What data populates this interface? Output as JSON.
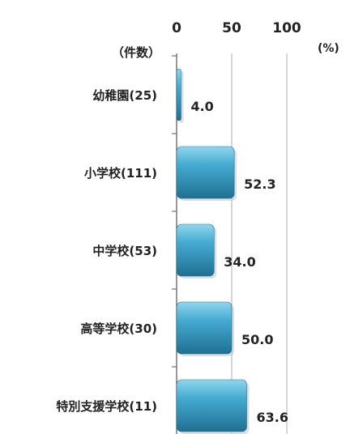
{
  "chart_data": {
    "type": "bar",
    "orientation": "horizontal",
    "categories": [
      "幼稚園(25)",
      "小学校(111)",
      "中学校(53)",
      "高等学校(30)",
      "特別支援学校(11)"
    ],
    "values": [
      4.0,
      52.3,
      34.0,
      50.0,
      63.6
    ],
    "value_labels": [
      "4.0",
      "52.3",
      "34.0",
      "50.0",
      "63.6"
    ],
    "x_ticks": [
      "0",
      "50",
      "100"
    ],
    "x_unit": "(%)",
    "y_header": "（件数）",
    "xlim": [
      0,
      100
    ],
    "grid": true,
    "legend": "none",
    "colors": {
      "bar": "#3a9ec4",
      "bar_light": "#7fcde8",
      "bar_dark": "#1f6f92",
      "grid": "#999999",
      "text": "#222222"
    }
  }
}
